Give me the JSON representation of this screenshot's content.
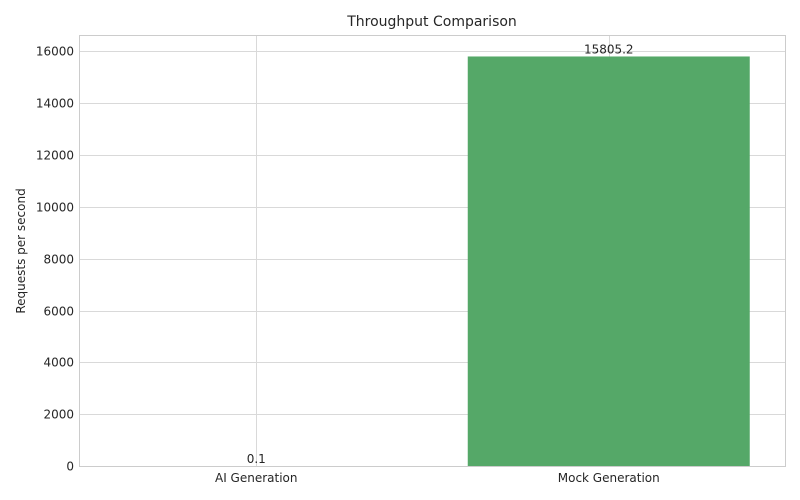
{
  "chart_data": {
    "type": "bar",
    "title": "Throughput Comparison",
    "xlabel": "",
    "ylabel": "Requests per second",
    "categories": [
      "AI Generation",
      "Mock Generation"
    ],
    "values": [
      0.1,
      15805.2
    ],
    "data_labels": [
      "0.1",
      "15805.2"
    ],
    "yticks": [
      0,
      2000,
      4000,
      6000,
      8000,
      10000,
      12000,
      14000,
      16000
    ],
    "ylim": [
      0,
      16595.5
    ],
    "grid": true,
    "colors": [
      "#55a868",
      "#55a868"
    ]
  }
}
